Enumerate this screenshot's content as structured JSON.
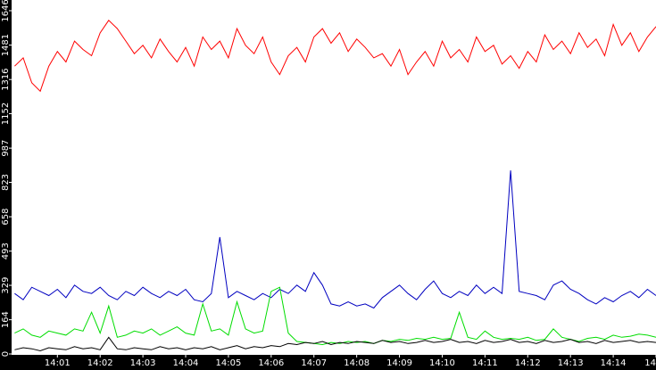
{
  "chart_data": {
    "type": "line",
    "x": [
      0,
      0.2,
      0.4,
      0.6,
      0.8,
      1,
      1.2,
      1.4,
      1.6,
      1.8,
      2,
      2.2,
      2.4,
      2.6,
      2.8,
      3,
      3.2,
      3.4,
      3.6,
      3.8,
      4,
      4.2,
      4.4,
      4.6,
      4.8,
      5,
      5.2,
      5.4,
      5.6,
      5.8,
      6,
      6.2,
      6.4,
      6.6,
      6.8,
      7,
      7.2,
      7.4,
      7.6,
      7.8,
      8,
      8.2,
      8.4,
      8.6,
      8.8,
      9,
      9.2,
      9.4,
      9.6,
      9.8,
      10,
      10.2,
      10.4,
      10.6,
      10.8,
      11,
      11.2,
      11.4,
      11.6,
      11.8,
      12,
      12.2,
      12.4,
      12.6,
      12.8,
      13,
      13.2,
      13.4,
      13.6,
      13.8,
      14,
      14.2,
      14.4,
      14.6,
      14.8,
      15
    ],
    "series": [
      {
        "color": "#ff0000",
        "values": [
          1380,
          1420,
          1300,
          1260,
          1380,
          1450,
          1400,
          1500,
          1460,
          1430,
          1540,
          1600,
          1560,
          1500,
          1440,
          1480,
          1420,
          1510,
          1450,
          1400,
          1470,
          1380,
          1520,
          1460,
          1500,
          1420,
          1560,
          1480,
          1440,
          1520,
          1400,
          1340,
          1430,
          1470,
          1400,
          1520,
          1560,
          1490,
          1540,
          1450,
          1510,
          1470,
          1420,
          1440,
          1380,
          1460,
          1340,
          1400,
          1450,
          1380,
          1500,
          1420,
          1460,
          1400,
          1520,
          1450,
          1480,
          1390,
          1430,
          1370,
          1450,
          1400,
          1530,
          1460,
          1500,
          1440,
          1540,
          1470,
          1510,
          1430,
          1580,
          1480,
          1540,
          1450,
          1520,
          1570
        ]
      },
      {
        "color": "#0000c0",
        "values": [
          290,
          260,
          320,
          300,
          280,
          310,
          270,
          330,
          300,
          290,
          320,
          280,
          260,
          300,
          280,
          320,
          290,
          270,
          300,
          280,
          310,
          260,
          250,
          290,
          560,
          270,
          300,
          280,
          260,
          290,
          270,
          310,
          290,
          330,
          300,
          390,
          330,
          240,
          230,
          250,
          230,
          240,
          220,
          270,
          300,
          330,
          290,
          260,
          310,
          350,
          290,
          270,
          300,
          280,
          330,
          290,
          320,
          290,
          880,
          300,
          290,
          280,
          260,
          330,
          350,
          310,
          290,
          260,
          240,
          270,
          250,
          280,
          300,
          270,
          310,
          280
        ]
      },
      {
        "color": "#00dd00",
        "values": [
          100,
          120,
          90,
          80,
          110,
          100,
          90,
          120,
          110,
          200,
          100,
          230,
          80,
          90,
          110,
          100,
          120,
          90,
          110,
          130,
          100,
          90,
          240,
          110,
          120,
          90,
          250,
          120,
          100,
          110,
          300,
          320,
          100,
          60,
          55,
          50,
          45,
          55,
          50,
          60,
          55,
          60,
          50,
          65,
          60,
          70,
          65,
          75,
          70,
          80,
          70,
          75,
          200,
          80,
          70,
          110,
          80,
          70,
          75,
          70,
          80,
          65,
          70,
          120,
          80,
          70,
          60,
          75,
          80,
          70,
          90,
          80,
          85,
          95,
          90,
          80
        ]
      },
      {
        "color": "#000000",
        "values": [
          20,
          30,
          25,
          15,
          30,
          25,
          20,
          35,
          25,
          30,
          20,
          80,
          25,
          20,
          30,
          25,
          20,
          35,
          25,
          30,
          20,
          30,
          25,
          35,
          20,
          30,
          40,
          25,
          35,
          30,
          40,
          35,
          50,
          45,
          55,
          50,
          60,
          45,
          55,
          50,
          60,
          55,
          50,
          65,
          55,
          60,
          50,
          55,
          65,
          55,
          60,
          70,
          55,
          60,
          50,
          65,
          55,
          60,
          70,
          55,
          60,
          50,
          65,
          55,
          60,
          70,
          55,
          60,
          50,
          65,
          55,
          60,
          65,
          55,
          60,
          55
        ]
      }
    ],
    "xlim": [
      -0.05,
      15
    ],
    "xticks": [
      {
        "value": 1,
        "label": "14:01"
      },
      {
        "value": 2,
        "label": "14:02"
      },
      {
        "value": 3,
        "label": "14:03"
      },
      {
        "value": 4,
        "label": "14:04"
      },
      {
        "value": 5,
        "label": "14:05"
      },
      {
        "value": 6,
        "label": "14:06"
      },
      {
        "value": 7,
        "label": "14:07"
      },
      {
        "value": 8,
        "label": "14:08"
      },
      {
        "value": 9,
        "label": "14:09"
      },
      {
        "value": 10,
        "label": "14:10"
      },
      {
        "value": 11,
        "label": "14:11"
      },
      {
        "value": 12,
        "label": "14:12"
      },
      {
        "value": 13,
        "label": "14:13"
      },
      {
        "value": 14,
        "label": "14:14"
      },
      {
        "value": 15,
        "label": "14"
      }
    ],
    "ylim": [
      0,
      1646
    ],
    "yticks": [
      0,
      164,
      329,
      493,
      658,
      823,
      987,
      1152,
      1316,
      1481,
      1646
    ]
  }
}
